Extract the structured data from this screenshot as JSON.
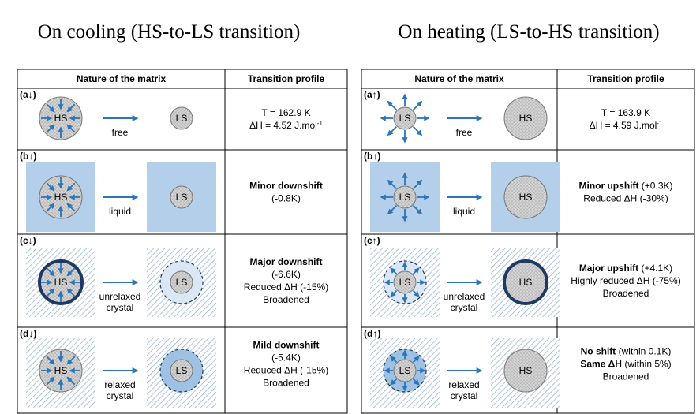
{
  "panels": [
    {
      "title": "On cooling (HS-to-LS transition)",
      "header": [
        "Nature of the matrix",
        "Transition profile"
      ],
      "rows": [
        {
          "label": "(a↓)",
          "from": "HS",
          "to": "LS",
          "matrix": [
            "free"
          ],
          "profile": [
            [
              {
                "text": "T = 162.9 K"
              }
            ],
            [
              {
                "text": "ΔH = 4.52 J.mol"
              },
              {
                "text": "-1",
                "sup": true
              }
            ]
          ]
        },
        {
          "label": "(b↓)",
          "from": "HS",
          "to": "LS",
          "matrix": [
            "liquid"
          ],
          "profile": [
            [
              {
                "text": "Minor downshift",
                "bold": true
              }
            ],
            [
              {
                "text": "(-0.8K)"
              }
            ]
          ]
        },
        {
          "label": "(c↓)",
          "from": "HS",
          "to": "LS",
          "matrix": [
            "unrelaxed",
            "crystal"
          ],
          "profile": [
            [
              {
                "text": "Major downshift",
                "bold": true
              }
            ],
            [
              {
                "text": "(-6.6K)"
              }
            ],
            [
              {
                "text": "Reduced ΔH (-15%)"
              }
            ],
            [
              {
                "text": "Broadened"
              }
            ]
          ]
        },
        {
          "label": "(d↓)",
          "from": "HS",
          "to": "LS",
          "matrix": [
            "relaxed",
            "crystal"
          ],
          "profile": [
            [
              {
                "text": "Mild downshift",
                "bold": true
              }
            ],
            [
              {
                "text": "(-5.4K)"
              }
            ],
            [
              {
                "text": "Reduced ΔH (-15%)"
              }
            ],
            [
              {
                "text": "Broadened"
              }
            ]
          ]
        }
      ]
    },
    {
      "title": "On heating (LS-to-HS transition)",
      "header": [
        "Nature of the matrix",
        "Transition profile"
      ],
      "rows": [
        {
          "label": "(a↑)",
          "from": "LS",
          "to": "HS",
          "matrix": [
            "free"
          ],
          "profile": [
            [
              {
                "text": "T = 163.9 K"
              }
            ],
            [
              {
                "text": "ΔH = 4.59 J.mol"
              },
              {
                "text": "-1",
                "sup": true
              }
            ]
          ]
        },
        {
          "label": "(b↑)",
          "from": "LS",
          "to": "HS",
          "matrix": [
            "liquid"
          ],
          "profile": [
            [
              {
                "text": "Minor upshift",
                "bold": true
              },
              {
                "text": " (+0.3K)"
              }
            ],
            [
              {
                "text": "Reduced ΔH (-30%)"
              }
            ]
          ]
        },
        {
          "label": "(c↑)",
          "from": "LS",
          "to": "HS",
          "matrix": [
            "unrelaxed",
            "crystal"
          ],
          "profile": [
            [
              {
                "text": "Major upshift",
                "bold": true
              },
              {
                "text": " (+4.1K)"
              }
            ],
            [
              {
                "text": "Highly reduced ΔH (-75%)"
              }
            ],
            [
              {
                "text": "Broadened"
              }
            ]
          ]
        },
        {
          "label": "(d↑)",
          "from": "LS",
          "to": "HS",
          "matrix": [
            "relaxed",
            "crystal"
          ],
          "profile": [
            [
              {
                "text": "No shift",
                "bold": true
              },
              {
                "text": " (within 0.1K)"
              }
            ],
            [
              {
                "text": "Same ΔH",
                "bold": true
              },
              {
                "text": " (within 5%)"
              }
            ],
            [
              {
                "text": "Broadened"
              }
            ]
          ]
        }
      ]
    }
  ]
}
